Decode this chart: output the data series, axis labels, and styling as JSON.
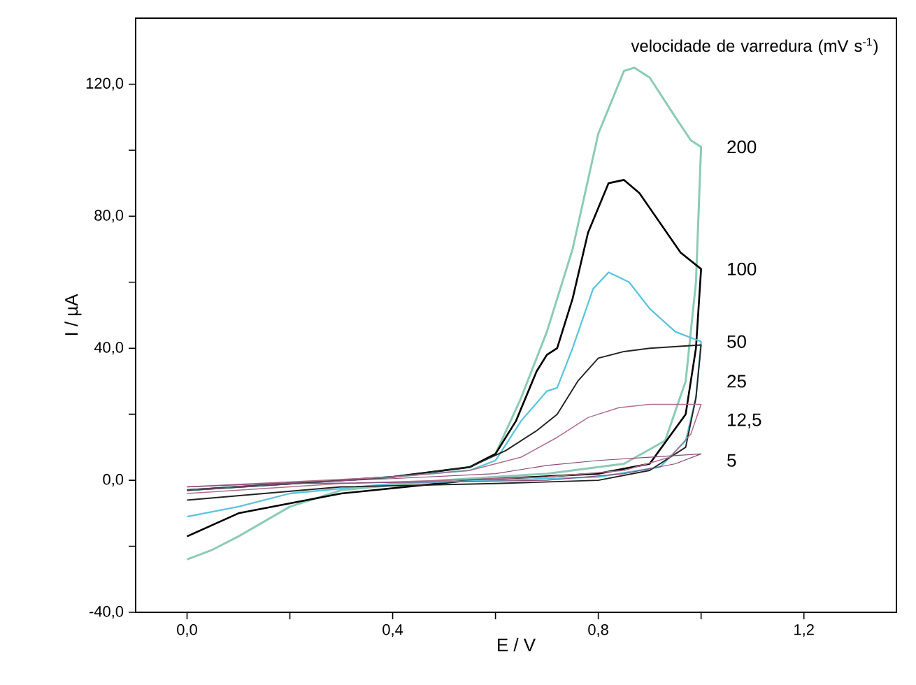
{
  "chart_data": {
    "type": "line",
    "xlabel": "E / V",
    "ylabel": "I / µA",
    "legend_title": "velocidade de varredura (mV s$^{-1}$)",
    "xlim": [
      -0.1,
      1.38
    ],
    "ylim": [
      -40,
      140
    ],
    "xticks": [
      {
        "value": 0,
        "label": "0,0"
      },
      {
        "value": 0.2,
        "label": null
      },
      {
        "value": 0.4,
        "label": "0,4"
      },
      {
        "value": 0.6,
        "label": null
      },
      {
        "value": 0.8,
        "label": "0,8"
      },
      {
        "value": 1.0,
        "label": null
      },
      {
        "value": 1.2,
        "label": "1,2"
      }
    ],
    "yticks": [
      {
        "value": -40,
        "label": "-40,0"
      },
      {
        "value": -20,
        "label": null
      },
      {
        "value": 0,
        "label": "0,0"
      },
      {
        "value": 20,
        "label": null
      },
      {
        "value": 40,
        "label": "40,0"
      },
      {
        "value": 60,
        "label": null
      },
      {
        "value": 80,
        "label": "80,0"
      },
      {
        "value": 100,
        "label": null
      },
      {
        "value": 120,
        "label": "120,0"
      }
    ],
    "grid": false,
    "legend": false,
    "marker": "none",
    "line_style": "solid",
    "series": [
      {
        "name": "200",
        "color": "#8ccbb4",
        "x": [
          0,
          0.2,
          0.4,
          0.55,
          0.6,
          0.65,
          0.7,
          0.72,
          0.75,
          0.8,
          0.85,
          0.87,
          0.9,
          0.95,
          0.98,
          1.0,
          0.99,
          0.97,
          0.93,
          0.85,
          0.7,
          0.5,
          0.3,
          0.2,
          0.1,
          0.05,
          0
        ],
        "values": [
          -3,
          -1,
          1,
          4,
          8,
          25,
          45,
          55,
          70,
          105,
          124,
          125,
          122,
          110,
          103,
          101,
          60,
          30,
          12,
          5,
          2,
          0,
          -3,
          -8,
          -17,
          -21,
          -24
        ]
      },
      {
        "name": "100",
        "color": "#000000",
        "x": [
          0,
          0.2,
          0.4,
          0.55,
          0.6,
          0.64,
          0.68,
          0.7,
          0.72,
          0.75,
          0.78,
          0.82,
          0.85,
          0.88,
          0.92,
          0.96,
          1.0,
          0.99,
          0.97,
          0.9,
          0.8,
          0.55,
          0.3,
          0.1,
          0
        ],
        "values": [
          -3,
          -1,
          1,
          4,
          8,
          18,
          33,
          38,
          40,
          55,
          75,
          90,
          91,
          87,
          78,
          69,
          64,
          40,
          20,
          5,
          2,
          0,
          -4,
          -10,
          -17
        ]
      },
      {
        "name": "50",
        "color": "#5bc4dc",
        "x": [
          0,
          0.4,
          0.55,
          0.6,
          0.65,
          0.7,
          0.72,
          0.75,
          0.79,
          0.82,
          0.86,
          0.9,
          0.95,
          1.0,
          0.99,
          0.97,
          0.92,
          0.8,
          0.6,
          0.4,
          0.2,
          0.1,
          0
        ],
        "values": [
          -3,
          1,
          3,
          6,
          18,
          27,
          28,
          40,
          58,
          63,
          60,
          52,
          45,
          42,
          25,
          12,
          4,
          1,
          0,
          -1,
          -4,
          -8,
          -11
        ]
      },
      {
        "name": "25",
        "color": "#222222",
        "x": [
          0,
          0.4,
          0.55,
          0.62,
          0.68,
          0.72,
          0.76,
          0.8,
          0.85,
          0.9,
          1.0,
          0.99,
          0.97,
          0.9,
          0.8,
          0.6,
          0.3,
          0
        ],
        "values": [
          -3,
          1,
          4,
          9,
          15,
          20,
          30,
          37,
          39,
          40,
          41,
          25,
          10,
          3,
          0,
          -1,
          -2,
          -6
        ]
      },
      {
        "name": "12,5",
        "color": "#b0708c",
        "x": [
          0,
          0.4,
          0.55,
          0.65,
          0.72,
          0.78,
          0.84,
          0.9,
          1.0,
          0.98,
          0.94,
          0.85,
          0.7,
          0.5,
          0.3,
          0
        ],
        "values": [
          -2,
          1,
          3,
          7,
          13,
          19,
          22,
          23,
          23,
          14,
          7,
          3,
          1,
          0,
          -1,
          -4
        ]
      },
      {
        "name": "5",
        "color": "#8a4a7a",
        "x": [
          0,
          0.4,
          0.6,
          0.7,
          0.8,
          0.9,
          1.0,
          0.95,
          0.85,
          0.7,
          0.5,
          0.2,
          0
        ],
        "values": [
          -2,
          0.5,
          2,
          4.5,
          6,
          7,
          8,
          5,
          2,
          0,
          -0.5,
          -1,
          -3
        ]
      }
    ]
  }
}
